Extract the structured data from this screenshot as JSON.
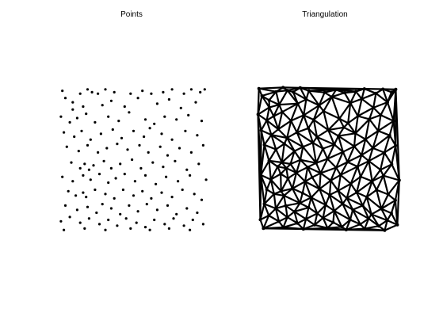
{
  "chart_data": [
    {
      "type": "scatter",
      "title": "Points",
      "xlim": [
        0,
        1
      ],
      "ylim": [
        0,
        1
      ],
      "grid": false,
      "axes_visible": false,
      "marker": "dot",
      "color": "#000000",
      "points": [
        [
          0.02,
          0.98
        ],
        [
          0.04,
          0.93
        ],
        [
          0.09,
          0.9
        ],
        [
          0.14,
          0.96
        ],
        [
          0.19,
          0.99
        ],
        [
          0.22,
          0.97
        ],
        [
          0.26,
          0.96
        ],
        [
          0.31,
          0.99
        ],
        [
          0.37,
          0.97
        ],
        [
          0.48,
          0.96
        ],
        [
          0.56,
          0.98
        ],
        [
          0.62,
          0.96
        ],
        [
          0.7,
          0.97
        ],
        [
          0.76,
          0.99
        ],
        [
          0.84,
          0.96
        ],
        [
          0.89,
          0.99
        ],
        [
          0.95,
          0.97
        ],
        [
          0.98,
          0.99
        ],
        [
          0.09,
          0.85
        ],
        [
          0.16,
          0.87
        ],
        [
          0.29,
          0.88
        ],
        [
          0.35,
          0.91
        ],
        [
          0.44,
          0.87
        ],
        [
          0.53,
          0.93
        ],
        [
          0.66,
          0.89
        ],
        [
          0.74,
          0.92
        ],
        [
          0.82,
          0.86
        ],
        [
          0.92,
          0.9
        ],
        [
          0.01,
          0.8
        ],
        [
          0.07,
          0.76
        ],
        [
          0.12,
          0.79
        ],
        [
          0.18,
          0.82
        ],
        [
          0.24,
          0.76
        ],
        [
          0.33,
          0.8
        ],
        [
          0.4,
          0.77
        ],
        [
          0.47,
          0.83
        ],
        [
          0.58,
          0.78
        ],
        [
          0.64,
          0.75
        ],
        [
          0.71,
          0.8
        ],
        [
          0.79,
          0.78
        ],
        [
          0.87,
          0.81
        ],
        [
          0.96,
          0.77
        ],
        [
          0.03,
          0.69
        ],
        [
          0.1,
          0.66
        ],
        [
          0.15,
          0.7
        ],
        [
          0.21,
          0.64
        ],
        [
          0.28,
          0.68
        ],
        [
          0.36,
          0.71
        ],
        [
          0.42,
          0.65
        ],
        [
          0.5,
          0.7
        ],
        [
          0.57,
          0.66
        ],
        [
          0.61,
          0.72
        ],
        [
          0.69,
          0.68
        ],
        [
          0.76,
          0.64
        ],
        [
          0.85,
          0.7
        ],
        [
          0.93,
          0.67
        ],
        [
          0.05,
          0.59
        ],
        [
          0.13,
          0.56
        ],
        [
          0.19,
          0.6
        ],
        [
          0.26,
          0.55
        ],
        [
          0.32,
          0.58
        ],
        [
          0.39,
          0.61
        ],
        [
          0.46,
          0.57
        ],
        [
          0.54,
          0.6
        ],
        [
          0.6,
          0.55
        ],
        [
          0.68,
          0.59
        ],
        [
          0.73,
          0.53
        ],
        [
          0.81,
          0.58
        ],
        [
          0.89,
          0.55
        ],
        [
          0.97,
          0.6
        ],
        [
          0.08,
          0.48
        ],
        [
          0.14,
          0.44
        ],
        [
          0.17,
          0.47
        ],
        [
          0.2,
          0.43
        ],
        [
          0.23,
          0.46
        ],
        [
          0.3,
          0.49
        ],
        [
          0.35,
          0.44
        ],
        [
          0.41,
          0.47
        ],
        [
          0.49,
          0.5
        ],
        [
          0.55,
          0.44
        ],
        [
          0.63,
          0.48
        ],
        [
          0.7,
          0.45
        ],
        [
          0.78,
          0.49
        ],
        [
          0.86,
          0.43
        ],
        [
          0.94,
          0.47
        ],
        [
          0.02,
          0.38
        ],
        [
          0.09,
          0.35
        ],
        [
          0.16,
          0.39
        ],
        [
          0.21,
          0.36
        ],
        [
          0.27,
          0.4
        ],
        [
          0.33,
          0.34
        ],
        [
          0.38,
          0.37
        ],
        [
          0.44,
          0.4
        ],
        [
          0.51,
          0.35
        ],
        [
          0.58,
          0.39
        ],
        [
          0.65,
          0.33
        ],
        [
          0.72,
          0.38
        ],
        [
          0.8,
          0.35
        ],
        [
          0.88,
          0.39
        ],
        [
          0.99,
          0.36
        ],
        [
          0.06,
          0.28
        ],
        [
          0.11,
          0.25
        ],
        [
          0.16,
          0.27
        ],
        [
          0.18,
          0.24
        ],
        [
          0.24,
          0.29
        ],
        [
          0.31,
          0.26
        ],
        [
          0.37,
          0.23
        ],
        [
          0.43,
          0.29
        ],
        [
          0.5,
          0.25
        ],
        [
          0.56,
          0.28
        ],
        [
          0.62,
          0.23
        ],
        [
          0.69,
          0.27
        ],
        [
          0.76,
          0.24
        ],
        [
          0.83,
          0.29
        ],
        [
          0.91,
          0.26
        ],
        [
          0.96,
          0.22
        ],
        [
          0.04,
          0.18
        ],
        [
          0.12,
          0.15
        ],
        [
          0.19,
          0.17
        ],
        [
          0.25,
          0.13
        ],
        [
          0.29,
          0.19
        ],
        [
          0.35,
          0.16
        ],
        [
          0.41,
          0.12
        ],
        [
          0.47,
          0.18
        ],
        [
          0.53,
          0.14
        ],
        [
          0.59,
          0.19
        ],
        [
          0.66,
          0.15
        ],
        [
          0.73,
          0.18
        ],
        [
          0.79,
          0.12
        ],
        [
          0.86,
          0.16
        ],
        [
          0.93,
          0.13
        ],
        [
          0.01,
          0.07
        ],
        [
          0.07,
          0.1
        ],
        [
          0.14,
          0.06
        ],
        [
          0.2,
          0.09
        ],
        [
          0.27,
          0.05
        ],
        [
          0.33,
          0.08
        ],
        [
          0.39,
          0.04
        ],
        [
          0.45,
          0.09
        ],
        [
          0.52,
          0.06
        ],
        [
          0.58,
          0.03
        ],
        [
          0.64,
          0.08
        ],
        [
          0.71,
          0.05
        ],
        [
          0.77,
          0.09
        ],
        [
          0.84,
          0.04
        ],
        [
          0.9,
          0.08
        ],
        [
          0.97,
          0.05
        ],
        [
          0.03,
          0.01
        ],
        [
          0.17,
          0.02
        ],
        [
          0.31,
          0.01
        ],
        [
          0.48,
          0.02
        ],
        [
          0.61,
          0.01
        ],
        [
          0.74,
          0.02
        ],
        [
          0.88,
          0.01
        ]
      ]
    },
    {
      "type": "network",
      "title": "Triangulation",
      "description_of_marks": "Delaunay triangulation of the same point set, drawn with thick black edges",
      "xlim": [
        0,
        1
      ],
      "ylim": [
        0,
        1
      ],
      "grid": false,
      "axes_visible": false,
      "color": "#000000",
      "edges_source": "points of chart_data[0]"
    }
  ]
}
